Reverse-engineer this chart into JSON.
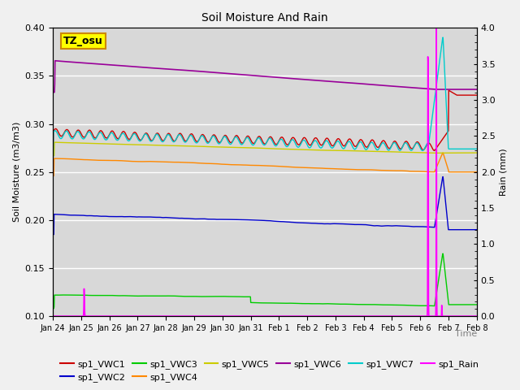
{
  "title": "Soil Moisture And Rain",
  "ylabel_left": "Soil Moisture (m3/m3)",
  "ylabel_right": "Rain (mm)",
  "xlabel_right": "Time",
  "ylim_left": [
    0.1,
    0.4
  ],
  "ylim_right": [
    0.0,
    4.0
  ],
  "date_labels": [
    "Jan 24",
    "Jan 25",
    "Jan 26",
    "Jan 27",
    "Jan 28",
    "Jan 29",
    "Jan 30",
    "Jan 31",
    "Feb 1",
    "Feb 2",
    "Feb 3",
    "Feb 4",
    "Feb 5",
    "Feb 6",
    "Feb 7",
    "Feb 8"
  ],
  "n_points": 1344,
  "annotation_text": "TZ_osu",
  "annotation_facecolor": "#ffff00",
  "annotation_edgecolor": "#cc8800",
  "series_colors": {
    "VWC1": "#cc0000",
    "VWC2": "#0000cc",
    "VWC3": "#00cc00",
    "VWC4": "#ff8800",
    "VWC5": "#cccc00",
    "VWC6": "#990099",
    "VWC7": "#00cccc",
    "Rain": "#ff00ff"
  },
  "bg_color": "#d8d8d8",
  "fig_color": "#f0f0f0",
  "grid_color": "#ffffff",
  "title_fontsize": 10,
  "label_fontsize": 8,
  "tick_fontsize": 8,
  "legend_fontsize": 8
}
